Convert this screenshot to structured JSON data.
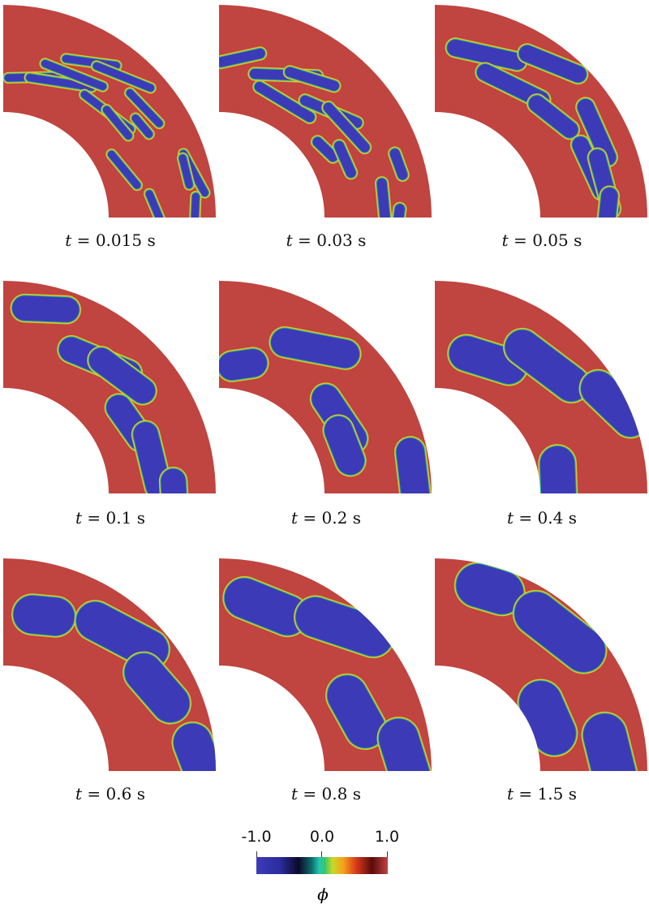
{
  "panels": [
    {
      "time": "0.015",
      "unit": "s"
    },
    {
      "time": "0.03",
      "unit": "s"
    },
    {
      "time": "0.05",
      "unit": "s"
    },
    {
      "time": "0.1",
      "unit": "s"
    },
    {
      "time": "0.2",
      "unit": "s"
    },
    {
      "time": "0.4",
      "unit": "s"
    },
    {
      "time": "0.6",
      "unit": "s"
    },
    {
      "time": "0.8",
      "unit": "s"
    },
    {
      "time": "1.5",
      "unit": "s"
    }
  ],
  "time_symbol": "t",
  "colorbar": {
    "min_label": "-1.0",
    "mid_label": "0.0",
    "max_label": "1.0",
    "variable": "ϕ",
    "colors": {
      "phase_high": "#c0443f",
      "phase_low": "#3d3ab8"
    }
  }
}
